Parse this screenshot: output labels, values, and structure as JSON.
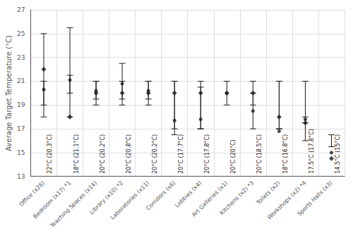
{
  "chart_data": {
    "type": "range",
    "categories": [
      "Office (x26)",
      "Bedroom (x17) *1",
      "Teaching Spaces (x14)",
      "Library (x10) *2",
      "Laboratories (x11)",
      "Corridors (x6)",
      "Lobbies (x4)",
      "Art Galleries (x1)",
      "Kitchens (x2) *3",
      "Toilets (x2)",
      "Workshops (x2) *4",
      "Sports Halls (x3)"
    ],
    "series": [
      {
        "marker": "diamond",
        "color": "#1a1a1a",
        "values": [
          22,
          18,
          20,
          20,
          20,
          20,
          20,
          20,
          20,
          18,
          17.5,
          14.5
        ],
        "low": [
          19,
          20,
          19,
          19,
          19,
          16.5,
          17,
          19,
          19,
          17,
          16,
          15.5
        ],
        "high": [
          25,
          25.5,
          21,
          22.5,
          21,
          21,
          21,
          21,
          21,
          21,
          21,
          16.5
        ]
      },
      {
        "marker": "circle",
        "color": "#1a1a1a",
        "values": [
          20.3,
          21.1,
          20.2,
          20.8,
          20.2,
          17.7,
          17.8,
          20.0,
          18.5,
          16.8,
          17.8,
          15.0
        ],
        "low": [
          18,
          18,
          19.5,
          19.5,
          19.5,
          17,
          17,
          null,
          17,
          17,
          17.5,
          null
        ],
        "high": [
          21,
          21.5,
          21,
          21,
          21,
          21,
          20.5,
          null,
          20,
          21,
          18,
          null
        ]
      }
    ],
    "annotations": [
      "22°C (20.3°C)",
      "18°C (21.1°C)",
      "20°C (20.2°C)",
      "20°C (20.8°C)",
      "20°C (20.2°C)",
      "20°C (17.7°C)",
      "20°C (17.8°C)",
      "20°C (20°C)",
      "20°C (18.5°C)",
      "18°C (16.8°C)",
      "17.5°C (17.8°C)",
      "14.5°C (15°C)"
    ],
    "ylabel": "Average Target Temperature (°C)",
    "ylim": [
      13,
      27
    ],
    "yticks": [
      13,
      15,
      17,
      19,
      21,
      23,
      25,
      27
    ],
    "grid": true
  }
}
